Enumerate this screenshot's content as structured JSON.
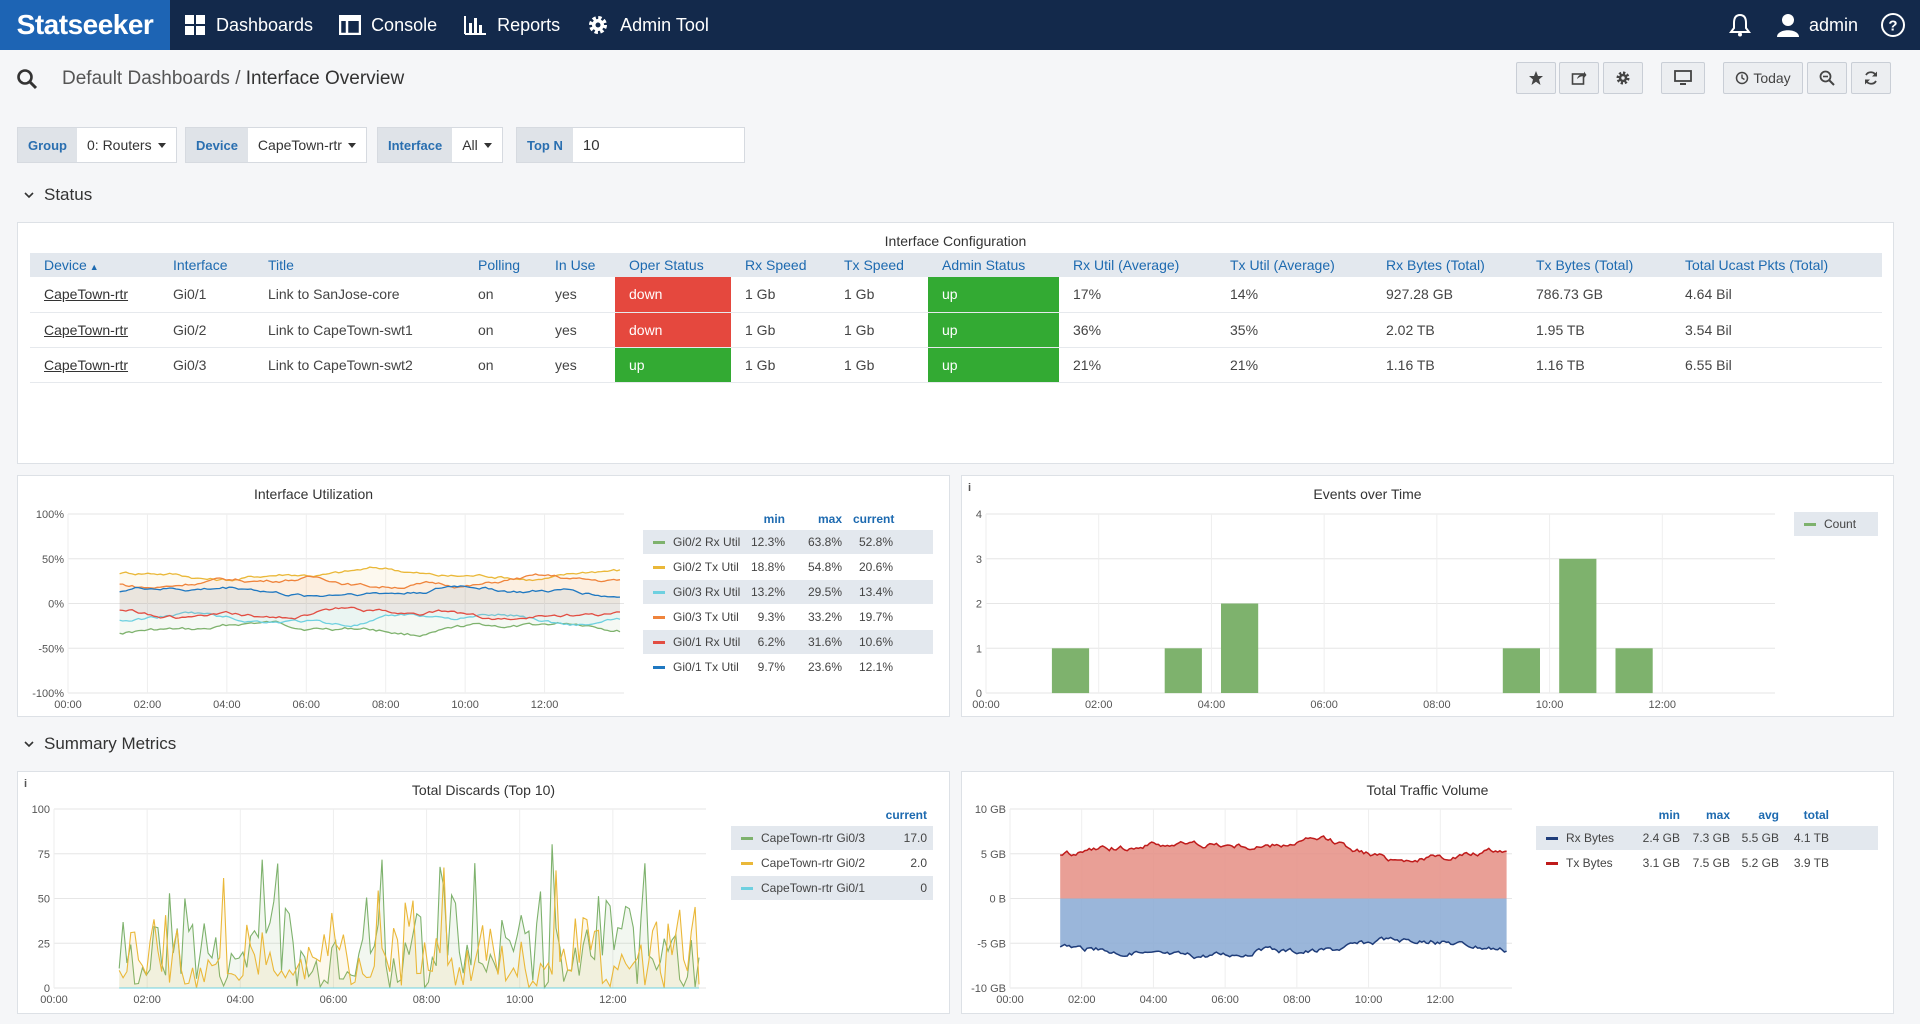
{
  "topbar": {
    "logo": "Statseeker",
    "nav": [
      {
        "label": "Dashboards",
        "icon": "dashboards-icon"
      },
      {
        "label": "Console",
        "icon": "console-icon"
      },
      {
        "label": "Reports",
        "icon": "reports-icon"
      },
      {
        "label": "Admin Tool",
        "icon": "gear-icon"
      }
    ],
    "user": "admin"
  },
  "breadcrumb": {
    "parent": "Default Dashboards",
    "separator": " / ",
    "current": "Interface Overview"
  },
  "toolbar": {
    "today_label": "Today"
  },
  "filters": {
    "group": {
      "label": "Group",
      "value": "0: Routers"
    },
    "device": {
      "label": "Device",
      "value": "CapeTown-rtr"
    },
    "interface": {
      "label": "Interface",
      "value": "All"
    },
    "topn": {
      "label": "Top N",
      "value": "10"
    }
  },
  "sections": {
    "status": "Status",
    "summary": "Summary Metrics"
  },
  "config_table": {
    "title": "Interface Configuration",
    "columns": [
      "Device",
      "Interface",
      "Title",
      "Polling",
      "In Use",
      "Oper Status",
      "Rx Speed",
      "Tx Speed",
      "Admin Status",
      "Rx Util (Average)",
      "Tx Util (Average)",
      "Rx Bytes (Total)",
      "Tx Bytes (Total)",
      "Total Ucast Pkts (Total)"
    ],
    "sort_indicator": "▲",
    "rows": [
      [
        "CapeTown-rtr",
        "Gi0/1",
        "Link to SanJose-core",
        "on",
        "yes",
        "down",
        "1 Gb",
        "1 Gb",
        "up",
        "17%",
        "14%",
        "927.28 GB",
        "786.73 GB",
        "4.64 Bil"
      ],
      [
        "CapeTown-rtr",
        "Gi0/2",
        "Link to CapeTown-swt1",
        "on",
        "yes",
        "down",
        "1 Gb",
        "1 Gb",
        "up",
        "36%",
        "35%",
        "2.02 TB",
        "1.95 TB",
        "3.54 Bil"
      ],
      [
        "CapeTown-rtr",
        "Gi0/3",
        "Link to CapeTown-swt2",
        "on",
        "yes",
        "up",
        "1 Gb",
        "1 Gb",
        "up",
        "21%",
        "21%",
        "1.16 TB",
        "1.16 TB",
        "6.55 Bil"
      ]
    ]
  },
  "util_panel": {
    "title": "Interface Utilization",
    "legend_headers": [
      "min",
      "max",
      "current"
    ],
    "legend": [
      {
        "name": "Gi0/2 Rx Util",
        "color": "#7eb26d",
        "min": "12.3%",
        "max": "63.8%",
        "current": "52.8%"
      },
      {
        "name": "Gi0/2 Tx Util",
        "color": "#eab839",
        "min": "18.8%",
        "max": "54.8%",
        "current": "20.6%"
      },
      {
        "name": "Gi0/3 Rx Util",
        "color": "#6ed0e0",
        "min": "13.2%",
        "max": "29.5%",
        "current": "13.4%"
      },
      {
        "name": "Gi0/3 Tx Util",
        "color": "#ef843c",
        "min": "9.3%",
        "max": "33.2%",
        "current": "19.7%"
      },
      {
        "name": "Gi0/1 Rx Util",
        "color": "#e24d42",
        "min": "6.2%",
        "max": "31.6%",
        "current": "10.6%"
      },
      {
        "name": "Gi0/1 Tx Util",
        "color": "#1f78c1",
        "min": "9.7%",
        "max": "23.6%",
        "current": "12.1%"
      }
    ]
  },
  "events_panel": {
    "title": "Events over Time",
    "info": "i",
    "legend": "Count",
    "color": "#7eb26d"
  },
  "discards_panel": {
    "title": "Total Discards (Top 10)",
    "info": "i",
    "legend_header": "current",
    "legend": [
      {
        "name": "CapeTown-rtr Gi0/3",
        "color": "#7eb26d",
        "current": "17.0"
      },
      {
        "name": "CapeTown-rtr Gi0/2",
        "color": "#eab839",
        "current": "2.0"
      },
      {
        "name": "CapeTown-rtr Gi0/1",
        "color": "#6ed0e0",
        "current": "0"
      }
    ]
  },
  "traffic_panel": {
    "title": "Total Traffic Volume",
    "legend_headers": [
      "min",
      "max",
      "avg",
      "total"
    ],
    "legend": [
      {
        "name": "Rx Bytes",
        "color": "#1f3d7a",
        "min": "2.4 GB",
        "max": "7.3 GB",
        "avg": "5.5 GB",
        "total": "4.1 TB"
      },
      {
        "name": "Tx Bytes",
        "color": "#bf1b1b",
        "min": "3.1 GB",
        "max": "7.5 GB",
        "avg": "5.2 GB",
        "total": "3.9 TB"
      }
    ]
  },
  "chart_data": [
    {
      "type": "line",
      "title": "Interface Utilization",
      "x_ticks": [
        "00:00",
        "02:00",
        "04:00",
        "06:00",
        "08:00",
        "10:00",
        "12:00"
      ],
      "y_ticks": [
        "100%",
        "50%",
        "0%",
        "-50%",
        "-100%"
      ],
      "ylim": [
        -100,
        100
      ],
      "xlim_hours": [
        0,
        14
      ],
      "series": [
        {
          "name": "Gi0/2 Rx Util",
          "color": "#7eb26d",
          "sign": -1,
          "level": 28
        },
        {
          "name": "Gi0/2 Tx Util",
          "color": "#eab839",
          "sign": 1,
          "level": 33
        },
        {
          "name": "Gi0/3 Rx Util",
          "color": "#6ed0e0",
          "sign": -1,
          "level": 18
        },
        {
          "name": "Gi0/3 Tx Util",
          "color": "#ef843c",
          "sign": 1,
          "level": 24
        },
        {
          "name": "Gi0/1 Rx Util",
          "color": "#e24d42",
          "sign": -1,
          "level": 12
        },
        {
          "name": "Gi0/1 Tx Util",
          "color": "#1f78c1",
          "sign": 1,
          "level": 14
        }
      ]
    },
    {
      "type": "bar",
      "title": "Events over Time",
      "x_ticks": [
        "00:00",
        "02:00",
        "04:00",
        "06:00",
        "08:00",
        "10:00",
        "12:00"
      ],
      "y_ticks": [
        "4",
        "3",
        "2",
        "1",
        "0"
      ],
      "ylim": [
        0,
        4
      ],
      "xlim_hours": [
        0,
        14
      ],
      "series": [
        {
          "name": "Count",
          "x": [
            1.5,
            3.5,
            4.5,
            9.5,
            10.5,
            11.5
          ],
          "values": [
            1,
            1,
            2,
            1,
            3,
            1
          ]
        }
      ]
    },
    {
      "type": "line",
      "title": "Total Discards (Top 10)",
      "x_ticks": [
        "00:00",
        "02:00",
        "04:00",
        "06:00",
        "08:00",
        "10:00",
        "12:00"
      ],
      "y_ticks": [
        "100",
        "75",
        "50",
        "25",
        "0"
      ],
      "ylim": [
        0,
        100
      ],
      "xlim_hours": [
        0,
        14
      ],
      "series": [
        {
          "name": "CapeTown-rtr Gi0/3",
          "color": "#7eb26d",
          "current": 17
        },
        {
          "name": "CapeTown-rtr Gi0/2",
          "color": "#eab839",
          "current": 2
        },
        {
          "name": "CapeTown-rtr Gi0/1",
          "color": "#6ed0e0",
          "current": 0
        }
      ]
    },
    {
      "type": "area",
      "title": "Total Traffic Volume",
      "x_ticks": [
        "00:00",
        "02:00",
        "04:00",
        "06:00",
        "08:00",
        "10:00",
        "12:00"
      ],
      "y_ticks": [
        "10 GB",
        "5 GB",
        "0 B",
        "-5 GB",
        "-10 GB"
      ],
      "ylim": [
        -10,
        10
      ],
      "xlim_hours": [
        0,
        14
      ],
      "series": [
        {
          "name": "Tx Bytes",
          "color": "#bf1b1b",
          "sign": 1,
          "avg": 5.2
        },
        {
          "name": "Rx Bytes",
          "color": "#1f3d7a",
          "sign": -1,
          "avg": 5.5
        }
      ]
    }
  ]
}
